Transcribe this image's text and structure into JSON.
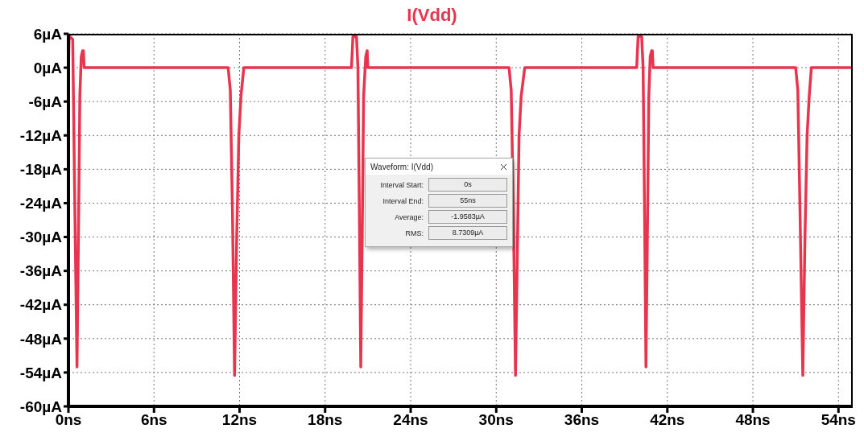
{
  "chart_data": {
    "type": "line",
    "title": "I(Vdd)",
    "xlim": [
      0,
      55
    ],
    "ylim": [
      -60,
      6
    ],
    "xticks": [
      {
        "value": 0,
        "label": "0ns"
      },
      {
        "value": 6,
        "label": "6ns"
      },
      {
        "value": 12,
        "label": "12ns"
      },
      {
        "value": 18,
        "label": "18ns"
      },
      {
        "value": 24,
        "label": "24ns"
      },
      {
        "value": 30,
        "label": "30ns"
      },
      {
        "value": 36,
        "label": "36ns"
      },
      {
        "value": 42,
        "label": "42ns"
      },
      {
        "value": 48,
        "label": "48ns"
      },
      {
        "value": 54,
        "label": "54ns"
      }
    ],
    "yticks": [
      {
        "value": 6,
        "label": "6µA"
      },
      {
        "value": 0,
        "label": "0µA"
      },
      {
        "value": -6,
        "label": "-6µA"
      },
      {
        "value": -12,
        "label": "-12µA"
      },
      {
        "value": -18,
        "label": "-18µA"
      },
      {
        "value": -24,
        "label": "-24µA"
      },
      {
        "value": -30,
        "label": "-30µA"
      },
      {
        "value": -36,
        "label": "-36µA"
      },
      {
        "value": -42,
        "label": "-42µA"
      },
      {
        "value": -48,
        "label": "-48µA"
      },
      {
        "value": -54,
        "label": "-54µA"
      },
      {
        "value": -60,
        "label": "-60µA"
      }
    ],
    "grid": true,
    "marker": "none",
    "line_style": "solid",
    "series": [
      {
        "color": "#e8354f",
        "x": [
          0,
          0.05,
          0.1,
          0.3,
          0.35,
          0.45,
          0.6,
          0.7,
          0.8,
          0.9,
          1.0,
          1.05,
          1.1,
          1.15,
          11.2,
          11.35,
          11.5,
          11.65,
          11.8,
          11.95,
          12.1,
          12.3,
          12.7,
          19.85,
          19.95,
          20.2,
          20.3,
          20.4,
          20.5,
          20.6,
          20.7,
          20.85,
          20.95,
          21.0,
          21.05,
          30.9,
          31.05,
          31.2,
          31.35,
          31.5,
          31.6,
          31.75,
          32.0,
          32.3,
          39.85,
          39.95,
          40.2,
          40.3,
          40.4,
          40.5,
          40.6,
          40.7,
          40.8,
          40.9,
          40.95,
          41.0,
          51.0,
          51.15,
          51.3,
          51.5,
          51.65,
          51.8,
          51.95,
          52.1,
          52.5,
          55
        ],
        "values": [
          0,
          5.5,
          5.5,
          5,
          -5,
          -25,
          -53,
          -30,
          -5,
          2,
          3,
          3,
          0,
          0,
          0,
          -4,
          -25,
          -54.5,
          -30,
          -12,
          -5,
          0,
          0,
          0,
          5.5,
          5.5,
          0,
          -25,
          -53,
          -30,
          -5,
          2,
          3,
          0,
          0,
          0,
          -4,
          -25,
          -54.5,
          -30,
          -12,
          -5,
          0,
          0,
          0,
          5.5,
          5.5,
          0,
          -25,
          -53,
          -30,
          -5,
          2,
          3,
          3,
          0,
          0,
          -4,
          -25,
          -54.5,
          -30,
          -12,
          -5,
          0,
          0,
          0
        ]
      }
    ],
    "annotations": [
      "Waveform: I(Vdd)",
      "Interval Start:",
      "0s",
      "Interval End:",
      "55ns",
      "Average:",
      "-1.9583µA",
      "RMS:",
      "8.7309µA"
    ]
  }
}
